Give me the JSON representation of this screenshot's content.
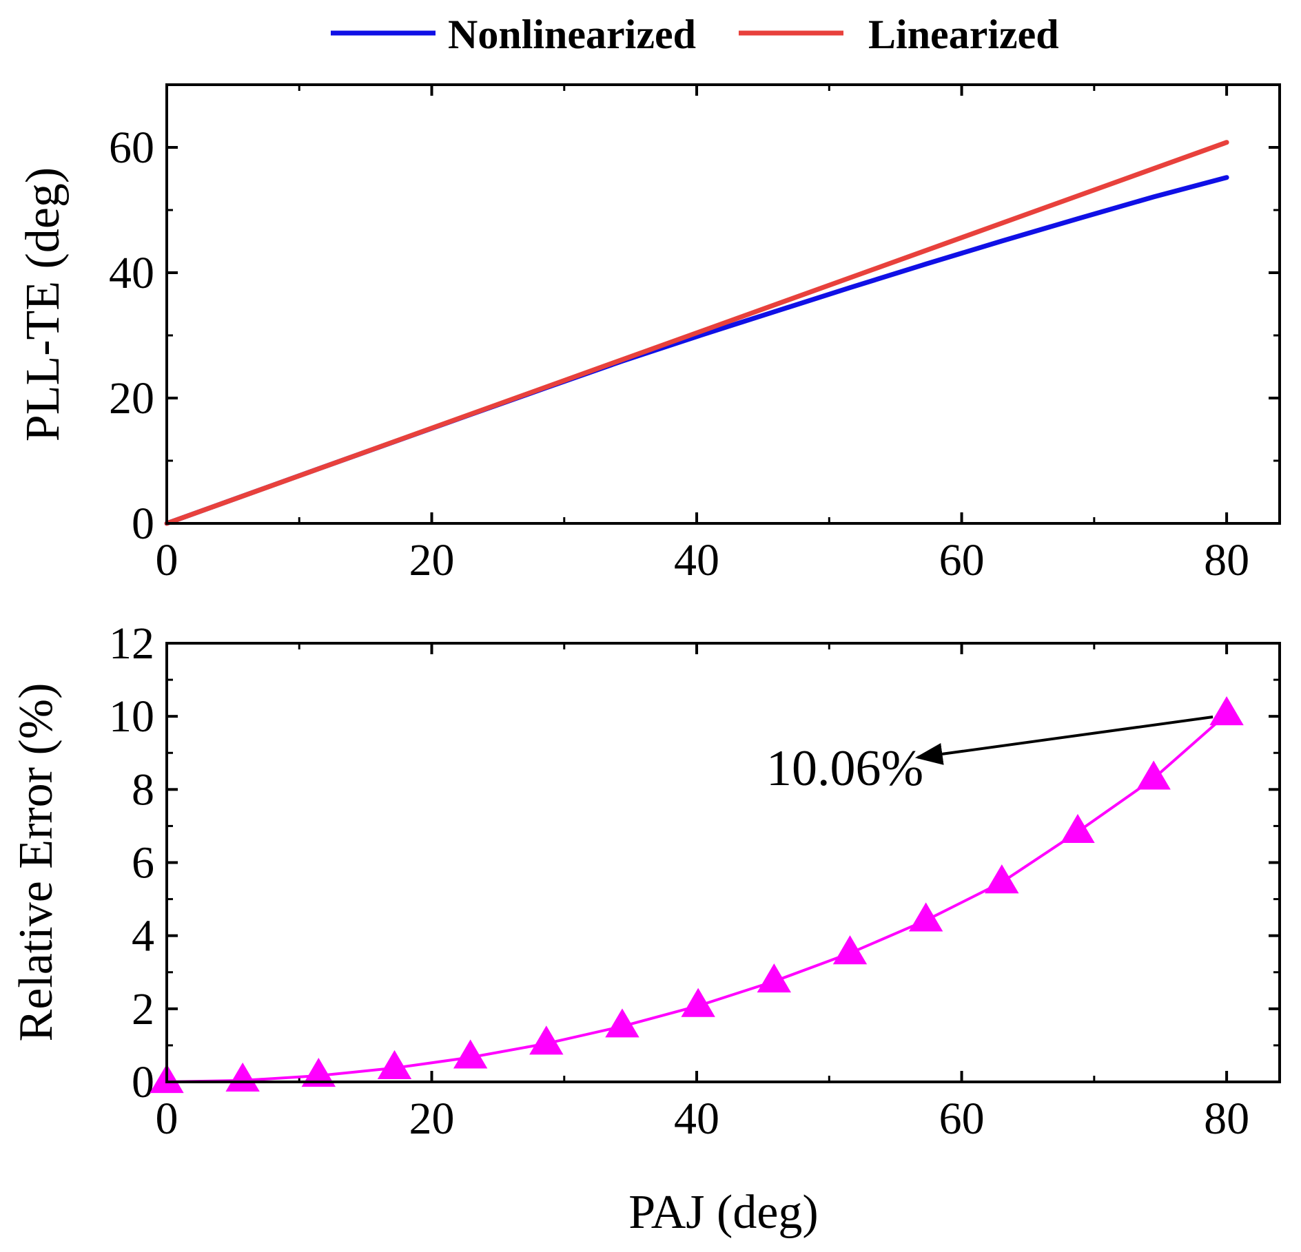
{
  "legend": {
    "items": [
      {
        "name": "Nonlinearized",
        "color": "#1010e6"
      },
      {
        "name": "Linearized",
        "color": "#e8413c"
      }
    ]
  },
  "chart_data": [
    {
      "type": "line",
      "panel": "top",
      "title": "",
      "xlabel": "",
      "ylabel": "PLL-TE (deg)",
      "xlim": [
        0,
        84
      ],
      "ylim": [
        0,
        70
      ],
      "x_ticks": [
        0,
        20,
        40,
        60,
        80
      ],
      "y_ticks": [
        0,
        20,
        40,
        60
      ],
      "x_minor_ticks": [
        10,
        30,
        50,
        70
      ],
      "y_minor_ticks": [
        10,
        30,
        50
      ],
      "series": [
        {
          "name": "Nonlinearized",
          "color": "#1010e6",
          "x": [
            0,
            5.73,
            11.46,
            17.19,
            22.92,
            28.65,
            34.38,
            40.11,
            45.84,
            51.57,
            57.3,
            63.03,
            68.76,
            74.49,
            80.0
          ],
          "y": [
            0,
            4.36,
            8.71,
            13.04,
            17.36,
            21.65,
            25.9,
            29.89,
            33.76,
            37.62,
            41.38,
            45.05,
            48.62,
            52.1,
            55.2
          ]
        },
        {
          "name": "Linearized",
          "color": "#e8413c",
          "x": [
            0,
            80.0
          ],
          "y": [
            0,
            60.8
          ]
        }
      ]
    },
    {
      "type": "line",
      "panel": "bottom",
      "title": "",
      "xlabel": "PAJ (deg)",
      "ylabel": "Relative Error (%)",
      "xlim": [
        0,
        84
      ],
      "ylim": [
        0,
        12
      ],
      "x_ticks": [
        0,
        20,
        40,
        60,
        80
      ],
      "y_ticks": [
        0,
        2,
        4,
        6,
        8,
        10,
        12
      ],
      "x_minor_ticks": [
        10,
        30,
        50,
        70
      ],
      "y_minor_ticks": [
        1,
        3,
        5,
        7,
        9,
        11
      ],
      "series": [
        {
          "name": "Relative Error",
          "color": "#ff00ff",
          "marker": "triangle",
          "x": [
            0,
            5.73,
            11.46,
            17.19,
            22.92,
            28.65,
            34.38,
            40.11,
            45.84,
            51.57,
            57.3,
            63.03,
            68.76,
            74.49,
            80.0
          ],
          "y": [
            0.0,
            0.04,
            0.17,
            0.38,
            0.67,
            1.05,
            1.52,
            2.08,
            2.75,
            3.52,
            4.42,
            5.46,
            6.84,
            8.3,
            10.06
          ]
        }
      ],
      "annotations": [
        {
          "text": "10.06%",
          "x": 52,
          "y": 8.5,
          "arrow_to": [
            80,
            10.06
          ]
        }
      ]
    }
  ]
}
